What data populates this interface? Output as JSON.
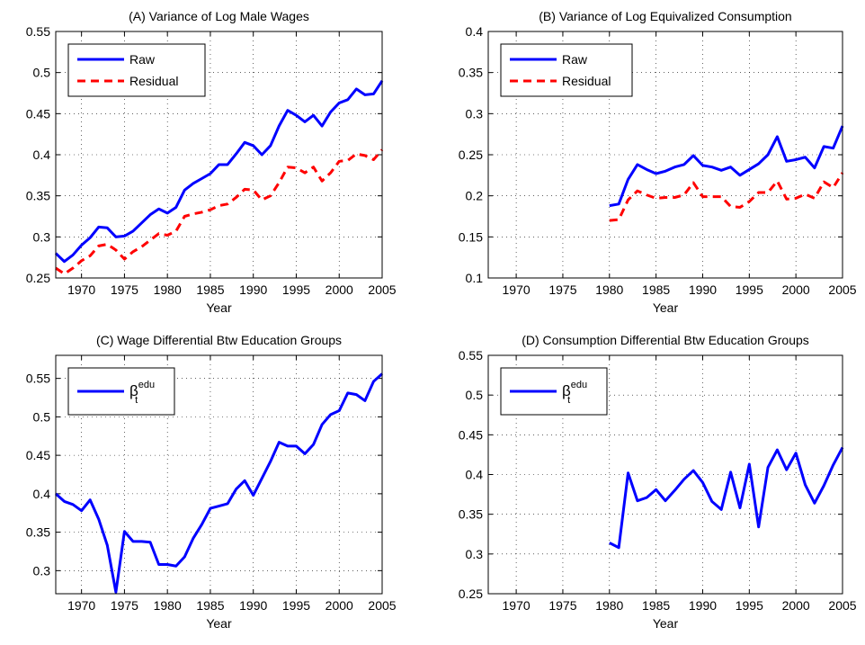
{
  "chart_data": [
    {
      "type": "line",
      "title": "(A) Variance of Log Male Wages",
      "x_label": "Year",
      "x": [
        1967,
        1968,
        1969,
        1970,
        1971,
        1972,
        1973,
        1974,
        1975,
        1976,
        1977,
        1978,
        1979,
        1980,
        1981,
        1982,
        1983,
        1984,
        1985,
        1986,
        1987,
        1988,
        1989,
        1990,
        1991,
        1992,
        1993,
        1994,
        1995,
        1996,
        1997,
        1998,
        1999,
        2000,
        2001,
        2002,
        2003,
        2004,
        2005
      ],
      "series": [
        {
          "name": "Raw",
          "color": "#0000ff",
          "linestyle": "solid",
          "values": [
            0.28,
            0.27,
            0.278,
            0.29,
            0.299,
            0.312,
            0.311,
            0.3,
            0.301,
            0.307,
            0.317,
            0.327,
            0.334,
            0.329,
            0.336,
            0.357,
            0.365,
            0.371,
            0.377,
            0.388,
            0.388,
            0.401,
            0.415,
            0.411,
            0.4,
            0.411,
            0.435,
            0.454,
            0.448,
            0.44,
            0.448,
            0.435,
            0.452,
            0.463,
            0.467,
            0.48,
            0.473,
            0.474,
            0.49
          ]
        },
        {
          "name": "Residual",
          "color": "#ff0000",
          "linestyle": "dashed",
          "values": [
            0.262,
            0.255,
            0.262,
            0.271,
            0.277,
            0.289,
            0.291,
            0.284,
            0.273,
            0.282,
            0.288,
            0.296,
            0.304,
            0.302,
            0.307,
            0.325,
            0.328,
            0.33,
            0.333,
            0.338,
            0.34,
            0.348,
            0.358,
            0.357,
            0.345,
            0.35,
            0.366,
            0.385,
            0.384,
            0.378,
            0.385,
            0.368,
            0.378,
            0.392,
            0.393,
            0.401,
            0.399,
            0.394,
            0.406
          ]
        }
      ],
      "xlim": [
        1967,
        2005
      ],
      "xticks": [
        1970,
        1975,
        1980,
        1985,
        1990,
        1995,
        2000,
        2005
      ],
      "ylim": [
        0.25,
        0.55
      ],
      "yticks": [
        0.25,
        0.3,
        0.35,
        0.4,
        0.45,
        0.5,
        0.55
      ],
      "grid": true,
      "legend": "northwest"
    },
    {
      "type": "line",
      "title": "(B) Variance of Log Equivalized Consumption",
      "x_label": "Year",
      "x": [
        1980,
        1981,
        1982,
        1983,
        1984,
        1985,
        1986,
        1987,
        1988,
        1989,
        1990,
        1991,
        1992,
        1993,
        1994,
        1995,
        1996,
        1997,
        1998,
        1999,
        2000,
        2001,
        2002,
        2003,
        2004,
        2005
      ],
      "series": [
        {
          "name": "Raw",
          "color": "#0000ff",
          "linestyle": "solid",
          "values": [
            0.188,
            0.19,
            0.22,
            0.238,
            0.232,
            0.227,
            0.23,
            0.235,
            0.238,
            0.249,
            0.237,
            0.235,
            0.231,
            0.235,
            0.225,
            0.232,
            0.239,
            0.25,
            0.272,
            0.242,
            0.244,
            0.247,
            0.234,
            0.26,
            0.258,
            0.285
          ]
        },
        {
          "name": "Residual",
          "color": "#ff0000",
          "linestyle": "dashed",
          "values": [
            0.17,
            0.171,
            0.195,
            0.206,
            0.201,
            0.197,
            0.198,
            0.198,
            0.201,
            0.216,
            0.199,
            0.199,
            0.199,
            0.187,
            0.186,
            0.193,
            0.204,
            0.204,
            0.218,
            0.196,
            0.197,
            0.202,
            0.197,
            0.217,
            0.21,
            0.228
          ]
        }
      ],
      "xlim": [
        1967,
        2005
      ],
      "xticks": [
        1970,
        1975,
        1980,
        1985,
        1990,
        1995,
        2000,
        2005
      ],
      "ylim": [
        0.1,
        0.4
      ],
      "yticks": [
        0.1,
        0.15,
        0.2,
        0.25,
        0.3,
        0.35,
        0.4
      ],
      "grid": true,
      "legend": "northwest"
    },
    {
      "type": "line",
      "title": "(C) Wage Differential Btw Education Groups",
      "x_label": "Year",
      "x": [
        1967,
        1968,
        1969,
        1970,
        1971,
        1972,
        1973,
        1974,
        1975,
        1976,
        1977,
        1978,
        1979,
        1980,
        1981,
        1982,
        1983,
        1984,
        1985,
        1986,
        1987,
        1988,
        1989,
        1990,
        1991,
        1992,
        1993,
        1994,
        1995,
        1996,
        1997,
        1998,
        1999,
        2000,
        2001,
        2002,
        2003,
        2004,
        2005
      ],
      "series": [
        {
          "name": "β",
          "name_sub": "t",
          "name_sup": "edu",
          "color": "#0000ff",
          "linestyle": "solid",
          "values": [
            0.4,
            0.39,
            0.386,
            0.378,
            0.392,
            0.367,
            0.333,
            0.272,
            0.351,
            0.338,
            0.338,
            0.337,
            0.308,
            0.308,
            0.306,
            0.318,
            0.342,
            0.36,
            0.381,
            0.384,
            0.387,
            0.406,
            0.417,
            0.398,
            0.42,
            0.442,
            0.467,
            0.462,
            0.462,
            0.452,
            0.464,
            0.49,
            0.503,
            0.508,
            0.531,
            0.529,
            0.521,
            0.546,
            0.556
          ]
        }
      ],
      "xlim": [
        1967,
        2005
      ],
      "xticks": [
        1970,
        1975,
        1980,
        1985,
        1990,
        1995,
        2000,
        2005
      ],
      "ylim": [
        0.27,
        0.58
      ],
      "yticks": [
        0.3,
        0.35,
        0.4,
        0.45,
        0.5,
        0.55
      ],
      "grid": true,
      "legend": "northwest"
    },
    {
      "type": "line",
      "title": "(D) Consumption Differential Btw Education Groups",
      "x_label": "Year",
      "x": [
        1980,
        1981,
        1982,
        1983,
        1984,
        1985,
        1986,
        1987,
        1988,
        1989,
        1990,
        1991,
        1992,
        1993,
        1994,
        1995,
        1996,
        1997,
        1998,
        1999,
        2000,
        2001,
        2002,
        2003,
        2004,
        2005
      ],
      "series": [
        {
          "name": "β",
          "name_sub": "t",
          "name_sup": "edu",
          "color": "#0000ff",
          "linestyle": "solid",
          "values": [
            0.314,
            0.308,
            0.402,
            0.367,
            0.371,
            0.381,
            0.367,
            0.38,
            0.394,
            0.405,
            0.39,
            0.366,
            0.356,
            0.403,
            0.358,
            0.413,
            0.334,
            0.409,
            0.431,
            0.406,
            0.427,
            0.387,
            0.364,
            0.386,
            0.412,
            0.434
          ]
        }
      ],
      "xlim": [
        1967,
        2005
      ],
      "xticks": [
        1970,
        1975,
        1980,
        1985,
        1990,
        1995,
        2000,
        2005
      ],
      "ylim": [
        0.25,
        0.55
      ],
      "yticks": [
        0.25,
        0.3,
        0.35,
        0.4,
        0.45,
        0.5,
        0.55
      ],
      "grid": true,
      "legend": "northwest"
    }
  ]
}
